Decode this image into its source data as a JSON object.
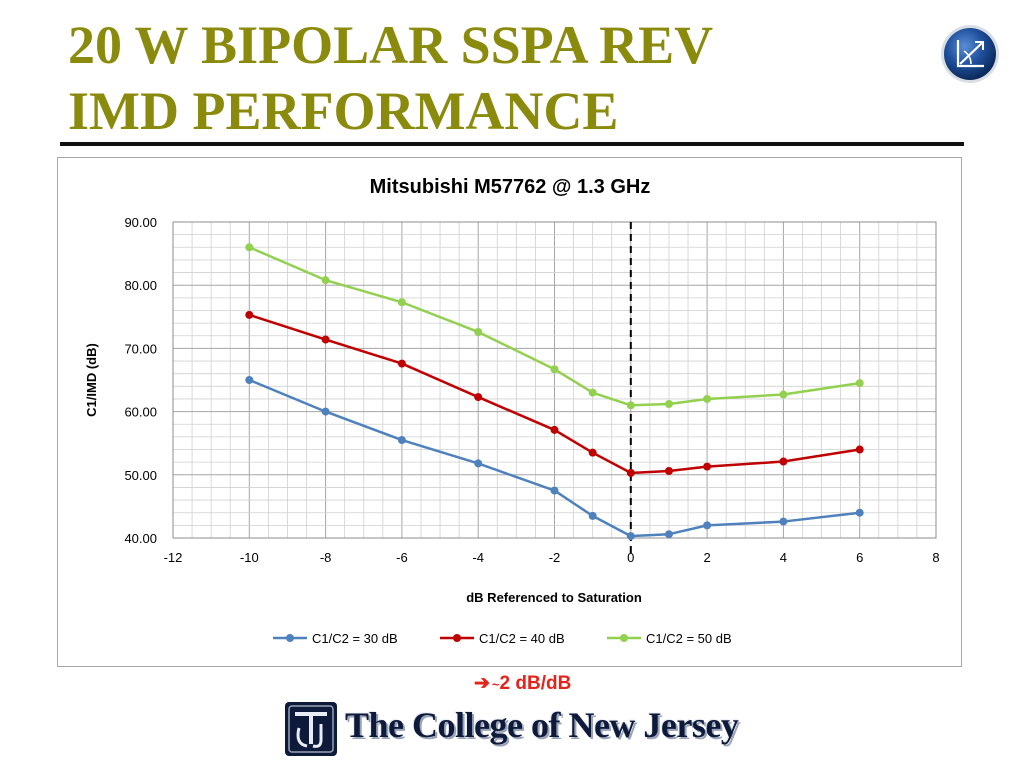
{
  "slide": {
    "title_line1": "20 W BIPOLAR SSPA REV",
    "title_line2": "IMD PERFORMANCE",
    "title_color": "#8a8a0d",
    "note_arrow": "➔",
    "note_tilde": "~",
    "note_text": "2 dB/dB",
    "note_color": "#e4231b",
    "footer_logo_text": "The College of New Jersey",
    "footer_logo_monogram": "TCNJ"
  },
  "chart_data": {
    "type": "line",
    "title": "Mitsubishi M57762 @ 1.3 GHz",
    "xlabel": "dB Referenced to Saturation",
    "ylabel": "C1/IMD (dB)",
    "xlim": [
      -12,
      8
    ],
    "ylim": [
      40,
      90
    ],
    "x_ticks": [
      -12,
      -10,
      -8,
      -6,
      -4,
      -2,
      0,
      2,
      4,
      6,
      8
    ],
    "y_ticks": [
      "40.00",
      "50.00",
      "60.00",
      "70.00",
      "80.00",
      "90.00"
    ],
    "grid": true,
    "legend_position": "bottom",
    "reference_line_x": 0,
    "x": [
      -10,
      -8,
      -6,
      -4,
      -2,
      -1,
      0,
      1,
      2,
      4,
      6
    ],
    "series": [
      {
        "name": "C1/C2 = 30 dB",
        "color": "#4f81bd",
        "values": [
          65.0,
          60.0,
          55.5,
          51.8,
          47.5,
          43.5,
          40.3,
          40.6,
          42.0,
          42.6,
          44.0
        ]
      },
      {
        "name": "C1/C2 = 40 dB",
        "color": "#c00000",
        "values": [
          75.3,
          71.4,
          67.6,
          62.3,
          57.1,
          53.5,
          50.3,
          50.6,
          51.3,
          52.1,
          54.0
        ]
      },
      {
        "name": "C1/C2 = 50 dB",
        "color": "#92d050",
        "values": [
          86.0,
          80.8,
          77.3,
          72.6,
          66.7,
          63.0,
          61.0,
          61.2,
          62.0,
          62.7,
          64.5
        ]
      }
    ]
  }
}
